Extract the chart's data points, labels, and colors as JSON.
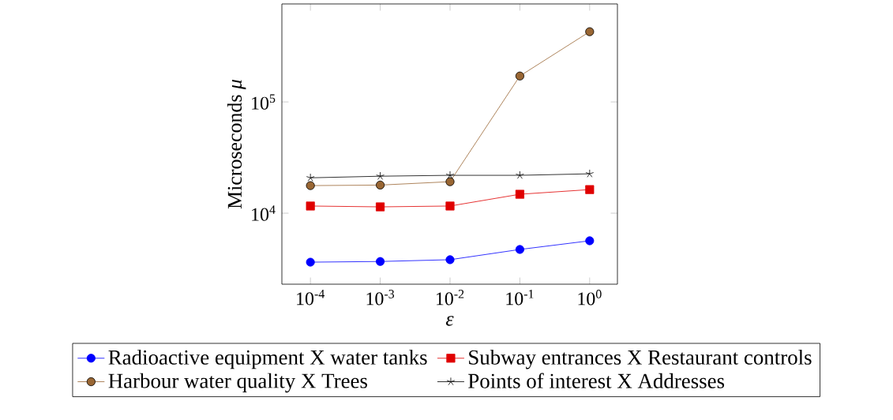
{
  "chart_data": {
    "type": "line",
    "xlabel": "*ε*",
    "ylabel": "Microseconds *μ*",
    "log": "xy",
    "grid": false,
    "legend": "bottom",
    "xlim": [
      3.9e-05,
      2.5
    ],
    "ylim": [
      2300,
      760000
    ],
    "xticks": [
      {
        "value": 0.0001,
        "label": "10$^{-4}$"
      },
      {
        "value": 0.001,
        "label": "10$^{-3}$"
      },
      {
        "value": 0.01,
        "label": "10$^{-2}$"
      },
      {
        "value": 0.1,
        "label": "10$^{-1}$"
      },
      {
        "value": 1,
        "label": "10$^{0}$"
      }
    ],
    "yticks": [
      {
        "value": 10000,
        "label": "10$^{4}$"
      },
      {
        "value": 100000,
        "label": "10$^{5}$"
      }
    ],
    "x": [
      0.0001,
      0.001,
      0.01,
      0.1,
      1
    ],
    "series": [
      {
        "name": "Radioactive equipment X water tanks",
        "color": "#0000ff",
        "marker": "circle",
        "values": [
          3630,
          3680,
          3820,
          4720,
          5650
        ]
      },
      {
        "name": "Subway entrances X Restaurant controls",
        "color": "#e00000",
        "marker": "square",
        "values": [
          11600,
          11400,
          11600,
          14800,
          16300
        ]
      },
      {
        "name": "Harbour water quality X Trees",
        "color": "#996633",
        "marker": "circle",
        "values": [
          17700,
          17900,
          19200,
          171000,
          428000
        ]
      },
      {
        "name": "Points of interest X Addresses",
        "color": "#000000",
        "marker": "cross",
        "values": [
          20800,
          21500,
          21900,
          21900,
          22600
        ]
      }
    ]
  }
}
